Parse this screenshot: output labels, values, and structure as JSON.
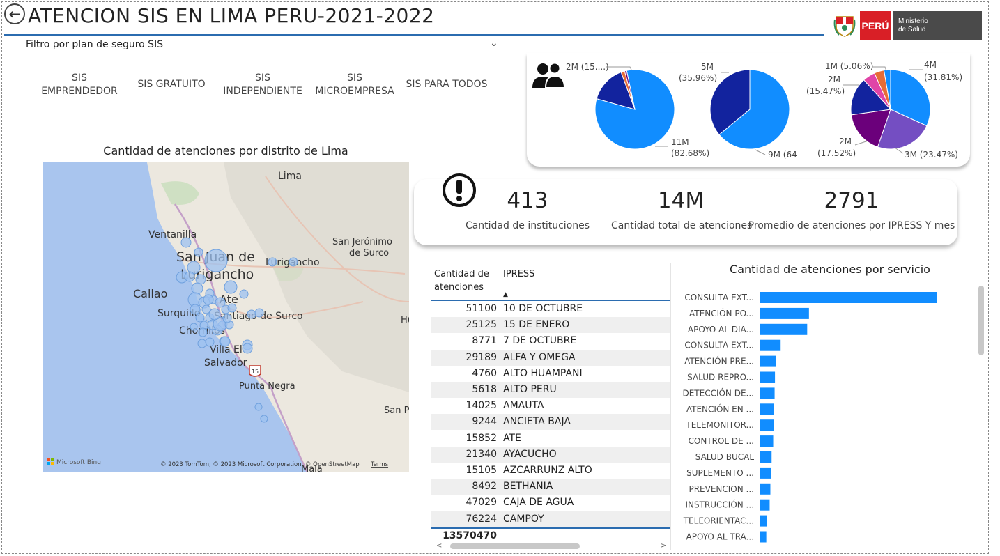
{
  "header": {
    "title": "ATENCION SIS EN LIMA PERU-2021-2022",
    "back_icon": "arrow-left-circle-icon",
    "logo": {
      "country": "PERÚ",
      "ministry_line1": "Ministerio",
      "ministry_line2": "de Salud"
    }
  },
  "filter": {
    "label": "Filtro por plan de seguro SIS",
    "options": [
      {
        "line1": "SIS",
        "line2": "EMPRENDEDOR"
      },
      {
        "line1": "SIS GRATUITO",
        "line2": ""
      },
      {
        "line1": "SIS",
        "line2": "INDEPENDIENTE"
      },
      {
        "line1": "SIS",
        "line2": "MICROEMPRESA"
      },
      {
        "line1": "SIS PARA TODOS",
        "line2": ""
      }
    ]
  },
  "map": {
    "title": "Cantidad de atenciones por distrito de Lima",
    "places": [
      "Lima",
      "Ventanilla",
      "San Juan de",
      "Lurigancho",
      "Lurigancho",
      "San Jerónimo",
      "de Surco",
      "Callao",
      "Ate",
      "Surquillo",
      "Santiago de Surco",
      "Chorrillos",
      "Villa El",
      "Salvador",
      "Punta Negra",
      "San Pe",
      "Hu",
      "Mala",
      "15"
    ],
    "attribution": "© 2023 TomTom, © 2023 Microsoft Corporation, © OpenStreetMap",
    "terms": "Terms",
    "bing": "Microsoft Bing"
  },
  "pies": [
    {
      "slices": [
        {
          "value": 82.68,
          "color": "#118DFF"
        },
        {
          "value": 15.0,
          "color": "#12239E"
        },
        {
          "value": 1.5,
          "color": "#E66C37"
        },
        {
          "value": 0.82,
          "color": "#6B007B"
        }
      ],
      "labels": [
        "2M (15....)",
        "11M",
        "(82.68%)"
      ]
    },
    {
      "slices": [
        {
          "value": 64.04,
          "color": "#118DFF"
        },
        {
          "value": 35.96,
          "color": "#12239E"
        }
      ],
      "labels": [
        "5M",
        "(35.96%)",
        "9M (64"
      ]
    },
    {
      "slices": [
        {
          "value": 31.81,
          "color": "#118DFF"
        },
        {
          "value": 23.47,
          "color": "#744EC2"
        },
        {
          "value": 17.52,
          "color": "#6B007B"
        },
        {
          "value": 15.47,
          "color": "#12239E"
        },
        {
          "value": 5.06,
          "color": "#E044A7"
        },
        {
          "value": 4.0,
          "color": "#E66C37"
        },
        {
          "value": 2.67,
          "color": "#118DFF"
        }
      ],
      "labels": [
        "1M (5.06%)",
        "4M",
        "(31.81%)",
        "2M",
        "(15.47%)",
        "2M",
        "(17.52%)",
        "3M (23.47%)"
      ]
    }
  ],
  "kpis": [
    {
      "value": "413",
      "label": "Cantidad de instituciones"
    },
    {
      "value": "14M",
      "label": "Cantidad total de atenciones"
    },
    {
      "value": "2791",
      "label": "Promedio de atenciones por IPRESS Y mes"
    }
  ],
  "table": {
    "col1_line1": "Cantidad de",
    "col1_line2": "atenciones",
    "col2": "IPRESS",
    "rows": [
      {
        "n": "51100",
        "name": "10 DE OCTUBRE"
      },
      {
        "n": "25125",
        "name": "15 DE ENERO"
      },
      {
        "n": "8771",
        "name": "7 DE OCTUBRE"
      },
      {
        "n": "29189",
        "name": "ALFA Y OMEGA"
      },
      {
        "n": "4760",
        "name": "ALTO HUAMPANI"
      },
      {
        "n": "5618",
        "name": "ALTO PERU"
      },
      {
        "n": "14025",
        "name": "AMAUTA"
      },
      {
        "n": "9244",
        "name": "ANCIETA BAJA"
      },
      {
        "n": "15852",
        "name": "ATE"
      },
      {
        "n": "21340",
        "name": "AYACUCHO"
      },
      {
        "n": "15105",
        "name": "AZCARRUNZ ALTO"
      },
      {
        "n": "8492",
        "name": "BETHANIA"
      },
      {
        "n": "47029",
        "name": "CAJA DE AGUA"
      },
      {
        "n": "76224",
        "name": "CAMPOY"
      }
    ],
    "total": "13570470"
  },
  "bar_chart_title": "Cantidad de atenciones por servicio",
  "chart_data": {
    "type": "bar",
    "title": "Cantidad de atenciones por servicio",
    "orientation": "horizontal",
    "categories": [
      "CONSULTA EXT...",
      "ATENCIÓN PO...",
      "APOYO AL DIA...",
      "CONSULTA EXT...",
      "ATENCIÓN PRE...",
      "SALUD REPRO...",
      "DETECCIÓN DE...",
      "ATENCIÓN EN ...",
      "TELEMONITOR...",
      "CONTROL DE ...",
      "SALUD BUCAL",
      "SUPLEMENTO ...",
      "PREVENCION ...",
      "INSTRUCCIÓN ...",
      "TELEORIENTAC...",
      "APOYO AL TRA..."
    ],
    "values": [
      100,
      27.5,
      26.5,
      11.5,
      9,
      8.3,
      8.1,
      7.7,
      7.5,
      7.3,
      6.4,
      6.2,
      5.7,
      5.3,
      3.6,
      3.4
    ],
    "color": "#118DFF",
    "grid": false
  }
}
